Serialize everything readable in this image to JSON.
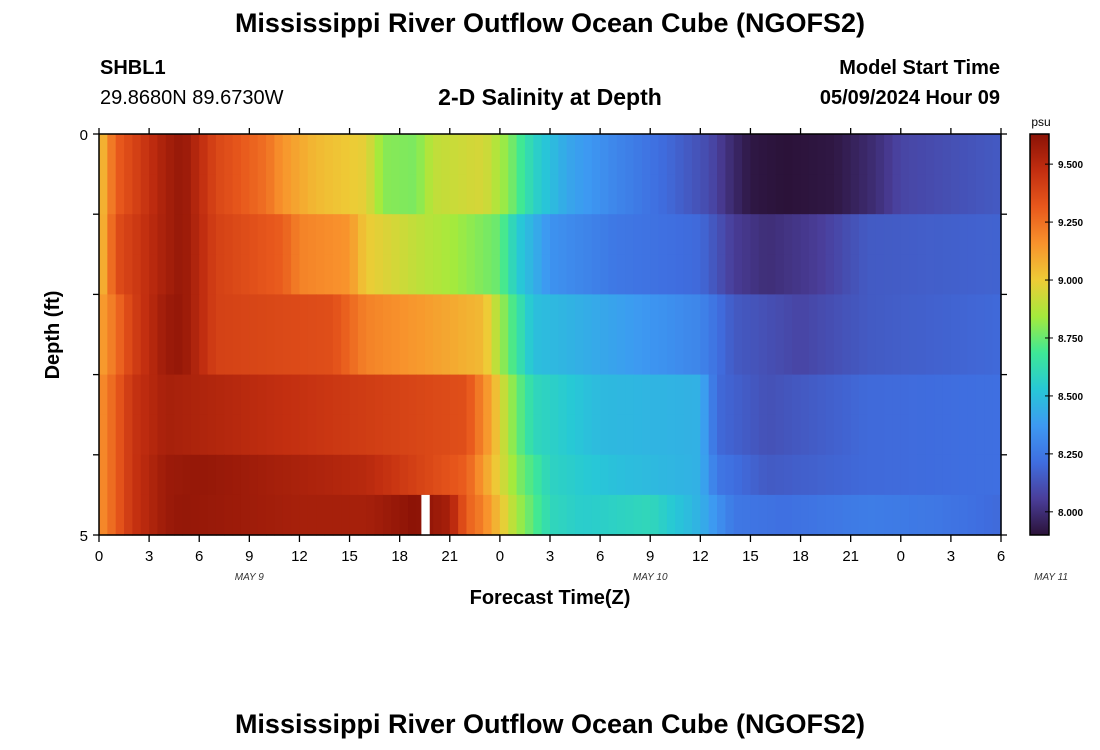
{
  "page": {
    "title": "Mississippi River Outflow Ocean Cube (NGOFS2)",
    "station_id": "SHBL1",
    "station_coords": "29.8680N  89.6730W",
    "chart_title": "2-D Salinity at Depth",
    "model_start_label": "Model Start Time",
    "model_start_value": "05/09/2024 Hour 09",
    "footer_title": "Mississippi River Outflow Ocean Cube (NGOFS2)"
  },
  "colors": {
    "background": "#ffffff",
    "colormap": [
      "#2b1238",
      "#4a3e9a",
      "#3f6ee0",
      "#3d99f2",
      "#27c8d6",
      "#3ee896",
      "#a5ea3c",
      "#eecb36",
      "#f8922c",
      "#e8581c",
      "#c22e10",
      "#8a1206"
    ]
  },
  "chart_data": {
    "type": "heatmap",
    "title": "2-D Salinity at Depth",
    "xlabel": "Forecast Time(Z)",
    "ylabel": "Depth (ft)",
    "unit": "psu",
    "x_tick_labels": [
      "0",
      "3",
      "6",
      "9",
      "12",
      "15",
      "18",
      "21",
      "0",
      "3",
      "6",
      "9",
      "12",
      "15",
      "18",
      "21",
      "0",
      "3",
      "6"
    ],
    "date_labels": [
      {
        "label": "MAY 9",
        "hour": 9
      },
      {
        "label": "MAY 10",
        "hour": 33
      },
      {
        "label": "MAY 11",
        "hour": 57
      }
    ],
    "x_range_hours": [
      0,
      54
    ],
    "y_ticks": [
      0,
      5
    ],
    "y_range_ft": [
      0,
      5
    ],
    "colorbar": {
      "ticks": [
        "8.000",
        "8.250",
        "8.500",
        "8.750",
        "9.000",
        "9.250",
        "9.500"
      ],
      "tick_values": [
        8.0,
        8.25,
        8.5,
        8.75,
        9.0,
        9.25,
        9.5
      ],
      "range": [
        7.9,
        9.63
      ]
    },
    "missing_data": [
      {
        "hour_start": 19.3,
        "hour_end": 19.8,
        "depth_start": 4.5,
        "depth_end": 5
      }
    ],
    "row_depths_ft": [
      0.25,
      0.75,
      1.25,
      1.75,
      2.25,
      2.75,
      3.25,
      3.75,
      4.25,
      4.75
    ],
    "series": [
      {
        "depth": 0.25,
        "keys": [
          [
            0,
            9.0
          ],
          [
            1,
            9.3
          ],
          [
            4,
            9.55
          ],
          [
            5,
            9.6
          ],
          [
            7,
            9.38
          ],
          [
            10,
            9.25
          ],
          [
            11,
            9.15
          ],
          [
            13,
            9.05
          ],
          [
            16,
            8.98
          ],
          [
            17,
            8.8
          ],
          [
            19,
            8.78
          ],
          [
            20,
            8.9
          ],
          [
            23,
            8.95
          ],
          [
            24.5,
            8.8
          ],
          [
            26,
            8.58
          ],
          [
            28,
            8.42
          ],
          [
            31,
            8.3
          ],
          [
            34,
            8.2
          ],
          [
            36.5,
            8.1
          ],
          [
            38,
            7.98
          ],
          [
            39,
            7.92
          ],
          [
            41,
            7.9
          ],
          [
            44,
            7.92
          ],
          [
            46.5,
            8.0
          ],
          [
            48,
            8.08
          ],
          [
            54,
            8.15
          ]
        ]
      },
      {
        "depth": 0.75,
        "keys": [
          [
            0,
            9.0
          ],
          [
            1,
            9.3
          ],
          [
            4,
            9.55
          ],
          [
            5,
            9.6
          ],
          [
            7,
            9.38
          ],
          [
            10,
            9.25
          ],
          [
            11,
            9.15
          ],
          [
            13,
            9.05
          ],
          [
            16,
            8.98
          ],
          [
            17,
            8.8
          ],
          [
            19,
            8.78
          ],
          [
            20,
            8.9
          ],
          [
            23,
            8.95
          ],
          [
            24.5,
            8.8
          ],
          [
            26,
            8.58
          ],
          [
            28,
            8.42
          ],
          [
            31,
            8.3
          ],
          [
            34,
            8.2
          ],
          [
            36.5,
            8.1
          ],
          [
            38,
            7.98
          ],
          [
            39,
            7.92
          ],
          [
            41,
            7.9
          ],
          [
            44,
            7.92
          ],
          [
            46.5,
            8.0
          ],
          [
            48,
            8.08
          ],
          [
            54,
            8.15
          ]
        ]
      },
      {
        "depth": 1.25,
        "keys": [
          [
            0,
            9.0
          ],
          [
            1,
            9.35
          ],
          [
            4,
            9.55
          ],
          [
            5,
            9.6
          ],
          [
            7,
            9.4
          ],
          [
            11,
            9.3
          ],
          [
            12,
            9.2
          ],
          [
            15,
            9.15
          ],
          [
            16,
            9.0
          ],
          [
            19,
            8.9
          ],
          [
            21,
            8.85
          ],
          [
            24,
            8.75
          ],
          [
            25,
            8.55
          ],
          [
            27,
            8.35
          ],
          [
            31,
            8.25
          ],
          [
            36,
            8.2
          ],
          [
            38,
            8.05
          ],
          [
            40,
            8.0
          ],
          [
            43,
            8.05
          ],
          [
            46,
            8.15
          ],
          [
            54,
            8.18
          ]
        ]
      },
      {
        "depth": 1.75,
        "keys": [
          [
            0,
            9.0
          ],
          [
            1,
            9.35
          ],
          [
            4,
            9.55
          ],
          [
            5,
            9.6
          ],
          [
            7,
            9.4
          ],
          [
            11,
            9.3
          ],
          [
            12,
            9.2
          ],
          [
            15,
            9.15
          ],
          [
            16,
            9.0
          ],
          [
            19,
            8.9
          ],
          [
            21,
            8.85
          ],
          [
            24,
            8.75
          ],
          [
            25,
            8.55
          ],
          [
            27,
            8.35
          ],
          [
            31,
            8.25
          ],
          [
            36,
            8.2
          ],
          [
            38,
            8.05
          ],
          [
            40,
            8.0
          ],
          [
            43,
            8.05
          ],
          [
            46,
            8.15
          ],
          [
            54,
            8.18
          ]
        ]
      },
      {
        "depth": 2.25,
        "keys": [
          [
            0,
            9.1
          ],
          [
            2,
            9.4
          ],
          [
            4,
            9.58
          ],
          [
            5,
            9.6
          ],
          [
            7,
            9.4
          ],
          [
            14,
            9.35
          ],
          [
            16,
            9.2
          ],
          [
            20,
            9.12
          ],
          [
            23,
            9.05
          ],
          [
            24.5,
            8.75
          ],
          [
            26,
            8.5
          ],
          [
            30,
            8.42
          ],
          [
            36,
            8.3
          ],
          [
            38,
            8.15
          ],
          [
            42,
            8.08
          ],
          [
            46,
            8.15
          ],
          [
            54,
            8.2
          ]
        ]
      },
      {
        "depth": 2.75,
        "keys": [
          [
            0,
            9.1
          ],
          [
            2,
            9.4
          ],
          [
            4,
            9.58
          ],
          [
            5,
            9.6
          ],
          [
            7,
            9.4
          ],
          [
            14,
            9.35
          ],
          [
            16,
            9.2
          ],
          [
            20,
            9.12
          ],
          [
            23,
            9.05
          ],
          [
            24.5,
            8.75
          ],
          [
            26,
            8.5
          ],
          [
            30,
            8.42
          ],
          [
            36,
            8.3
          ],
          [
            38,
            8.15
          ],
          [
            42,
            8.08
          ],
          [
            46,
            8.15
          ],
          [
            54,
            8.2
          ]
        ]
      },
      {
        "depth": 3.25,
        "keys": [
          [
            0,
            9.15
          ],
          [
            2,
            9.45
          ],
          [
            4,
            9.55
          ],
          [
            22,
            9.35
          ],
          [
            23.5,
            9.1
          ],
          [
            24.5,
            8.85
          ],
          [
            26,
            8.6
          ],
          [
            30,
            8.48
          ],
          [
            36,
            8.45
          ],
          [
            37,
            8.2
          ],
          [
            40,
            8.12
          ],
          [
            46,
            8.2
          ],
          [
            54,
            8.22
          ]
        ]
      },
      {
        "depth": 3.75,
        "keys": [
          [
            0,
            9.15
          ],
          [
            2,
            9.45
          ],
          [
            4,
            9.55
          ],
          [
            22,
            9.35
          ],
          [
            23.5,
            9.1
          ],
          [
            24.5,
            8.85
          ],
          [
            26,
            8.6
          ],
          [
            30,
            8.48
          ],
          [
            36,
            8.45
          ],
          [
            37,
            8.2
          ],
          [
            40,
            8.12
          ],
          [
            46,
            8.2
          ],
          [
            54,
            8.22
          ]
        ]
      },
      {
        "depth": 4.25,
        "keys": [
          [
            0,
            9.15
          ],
          [
            2,
            9.45
          ],
          [
            4,
            9.58
          ],
          [
            6,
            9.6
          ],
          [
            16,
            9.5
          ],
          [
            20.5,
            9.35
          ],
          [
            22,
            9.3
          ],
          [
            23.5,
            9.05
          ],
          [
            25,
            8.8
          ],
          [
            27,
            8.58
          ],
          [
            31,
            8.5
          ],
          [
            36,
            8.45
          ],
          [
            37,
            8.25
          ],
          [
            40,
            8.15
          ],
          [
            46,
            8.2
          ],
          [
            54,
            8.22
          ]
        ]
      },
      {
        "depth": 4.75,
        "keys": [
          [
            0,
            9.15
          ],
          [
            2,
            9.45
          ],
          [
            4,
            9.58
          ],
          [
            5,
            9.6
          ],
          [
            12,
            9.55
          ],
          [
            16,
            9.55
          ],
          [
            18,
            9.6
          ],
          [
            19,
            9.63
          ],
          [
            21,
            9.55
          ],
          [
            22,
            9.3
          ],
          [
            23,
            9.2
          ],
          [
            25,
            8.85
          ],
          [
            27,
            8.6
          ],
          [
            29,
            8.55
          ],
          [
            33,
            8.6
          ],
          [
            36,
            8.45
          ],
          [
            38,
            8.25
          ],
          [
            41,
            8.22
          ],
          [
            46,
            8.27
          ],
          [
            50,
            8.25
          ],
          [
            54,
            8.2
          ]
        ]
      }
    ]
  }
}
